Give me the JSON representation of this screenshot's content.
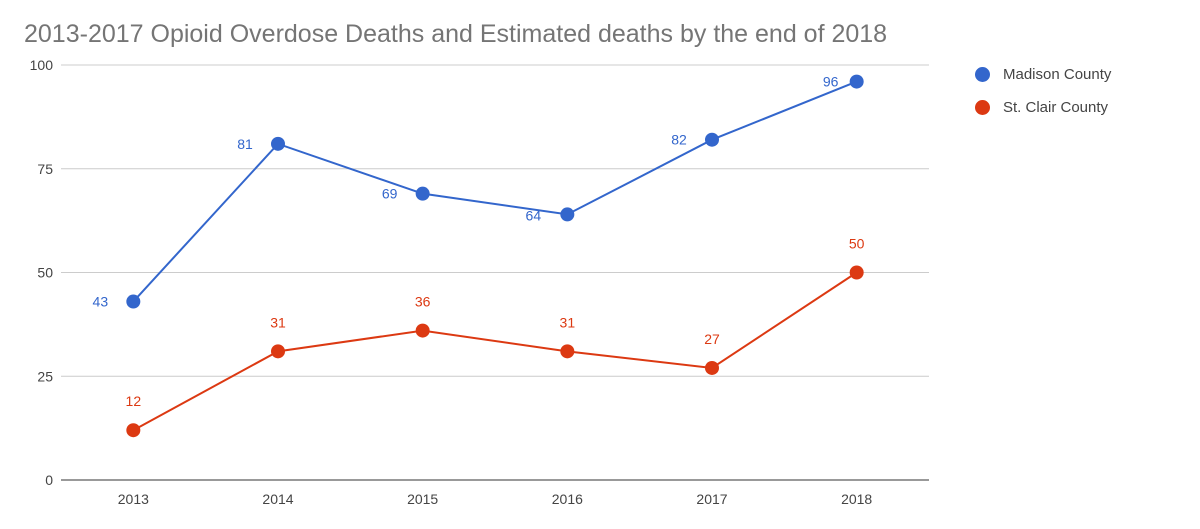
{
  "chart_data": {
    "type": "line",
    "title": "2013-2017 Opioid Overdose Deaths and Estimated deaths by the end of 2018",
    "xlabel": "",
    "ylabel": "",
    "categories": [
      "2013",
      "2014",
      "2015",
      "2016",
      "2017",
      "2018"
    ],
    "ylim": [
      0,
      100
    ],
    "yticks": [
      0,
      25,
      50,
      75,
      100
    ],
    "grid": true,
    "legend_position": "right",
    "series": [
      {
        "name": "Madison County",
        "color": "#3366cc",
        "values": [
          43,
          81,
          69,
          64,
          82,
          96
        ]
      },
      {
        "name": "St. Clair County",
        "color": "#dc3912",
        "values": [
          12,
          31,
          36,
          31,
          27,
          50
        ]
      }
    ]
  }
}
